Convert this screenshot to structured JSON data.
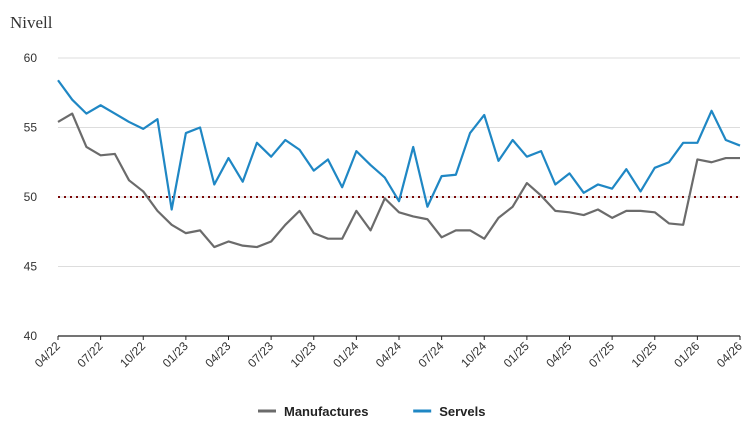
{
  "chart_data": {
    "type": "line",
    "title": "",
    "ylabel": "Nivell",
    "xlabel": "",
    "ylim": [
      40,
      60
    ],
    "yticks": [
      40,
      45,
      50,
      55,
      60
    ],
    "grid": true,
    "legend_position": "bottom",
    "reference_line": {
      "value": 50,
      "style": "dotted",
      "color": "#7a0a0a"
    },
    "x": [
      "04/22",
      "05/22",
      "06/22",
      "07/22",
      "08/22",
      "09/22",
      "10/22",
      "11/22",
      "12/22",
      "01/23",
      "02/23",
      "03/23",
      "04/23",
      "05/23",
      "06/23",
      "07/23",
      "08/23",
      "09/23",
      "10/23",
      "11/23",
      "12/23",
      "01/24",
      "02/24",
      "03/24",
      "04/24",
      "05/24",
      "06/24",
      "07/24",
      "08/24",
      "09/24",
      "10/24",
      "11/24",
      "12/24",
      "01/25",
      "02/25",
      "03/25",
      "04/25",
      "05/25",
      "06/25",
      "07/25",
      "08/25",
      "09/25",
      "10/25",
      "11/25",
      "12/25",
      "01/26",
      "02/26",
      "03/26",
      "04/26"
    ],
    "x_tick_labels": [
      "04/22",
      "07/22",
      "10/22",
      "01/23",
      "04/23",
      "07/23",
      "10/23",
      "01/24",
      "04/24",
      "07/24",
      "10/24",
      "01/25",
      "04/25",
      "07/25",
      "10/25",
      "01/26",
      "04/26"
    ],
    "series": [
      {
        "name": "Manufactures",
        "color": "#6b6b6b",
        "values": [
          55.4,
          56.0,
          53.6,
          53.0,
          53.1,
          51.2,
          50.4,
          49.0,
          48.0,
          47.4,
          47.6,
          46.4,
          46.8,
          46.5,
          46.4,
          46.8,
          48.0,
          49.0,
          47.4,
          47.0,
          47.0,
          49.0,
          47.6,
          49.9,
          48.9,
          48.6,
          48.4,
          47.1,
          47.6,
          47.6,
          47.0,
          48.5,
          49.3,
          51.0,
          50.1,
          49.0,
          48.9,
          48.7,
          49.1,
          48.5,
          49.0,
          49.0,
          48.9,
          48.1,
          48.0,
          52.7,
          52.5,
          52.8,
          52.8
        ]
      },
      {
        "name": "Servels",
        "color": "#1f87c4",
        "values": [
          58.4,
          57.0,
          56.0,
          56.6,
          56.0,
          55.4,
          54.9,
          55.6,
          49.1,
          54.6,
          55.0,
          50.9,
          52.8,
          51.1,
          53.9,
          52.9,
          54.1,
          53.4,
          51.9,
          52.7,
          50.7,
          53.3,
          52.3,
          51.4,
          49.7,
          53.6,
          49.3,
          51.5,
          51.6,
          54.6,
          55.9,
          52.6,
          54.1,
          52.9,
          53.3,
          50.9,
          51.7,
          50.3,
          50.9,
          50.6,
          52.0,
          50.4,
          52.1,
          52.5,
          53.9,
          53.9,
          56.2,
          54.1,
          53.7
        ]
      }
    ]
  }
}
